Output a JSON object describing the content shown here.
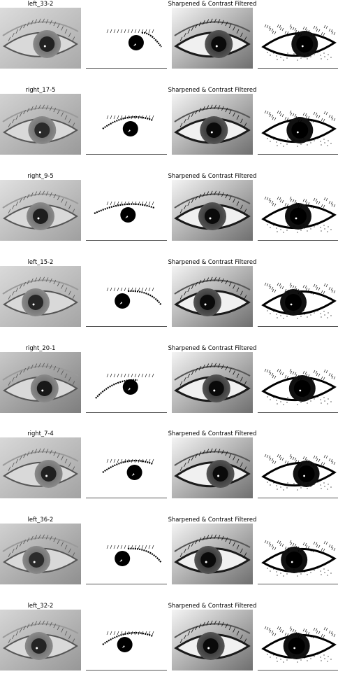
{
  "figure": {
    "right_title": "Sharpened & Contrast Filtered",
    "rows": [
      {
        "label": "left_33-2",
        "iris": 0.58,
        "pupilTone": "#222222",
        "skinA": "#dcdcdc",
        "skinB": "#a9a9a9",
        "maskLash": "upper-right",
        "maskIris": 0.62
      },
      {
        "label": "right_17-5",
        "iris": 0.52,
        "pupilTone": "#2a2a2a",
        "skinA": "#d2d2d2",
        "skinB": "#9a9a9a",
        "maskLash": "upper",
        "maskIris": 0.55
      },
      {
        "label": "right_9-5",
        "iris": 0.5,
        "pupilTone": "#1e1e1e",
        "skinA": "#e0e0e0",
        "skinB": "#9f9f9f",
        "maskLash": "upper-full",
        "maskIris": 0.52
      },
      {
        "label": "left_15-2",
        "iris": 0.44,
        "pupilTone": "#262626",
        "skinA": "#dadada",
        "skinB": "#a5a5a5",
        "maskLash": "upper-right",
        "maskIris": 0.45
      },
      {
        "label": "right_20-1",
        "iris": 0.55,
        "pupilTone": "#181818",
        "skinA": "#c9c9c9",
        "skinB": "#7e7e7e",
        "maskLash": "upper-left",
        "maskIris": 0.55
      },
      {
        "label": "right_7-4",
        "iris": 0.6,
        "pupilTone": "#202020",
        "skinA": "#d8d8d8",
        "skinB": "#a3a3a3",
        "maskLash": "upper",
        "maskIris": 0.6
      },
      {
        "label": "left_36-2",
        "iris": 0.45,
        "pupilTone": "#2b2b2b",
        "skinA": "#d1d1d1",
        "skinB": "#8f8f8f",
        "maskLash": "upper-right",
        "maskIris": 0.45
      },
      {
        "label": "left_32-2",
        "iris": 0.48,
        "pupilTone": "#242424",
        "skinA": "#d6d6d6",
        "skinB": "#979797",
        "maskLash": "upper",
        "maskIris": 0.48
      }
    ]
  }
}
